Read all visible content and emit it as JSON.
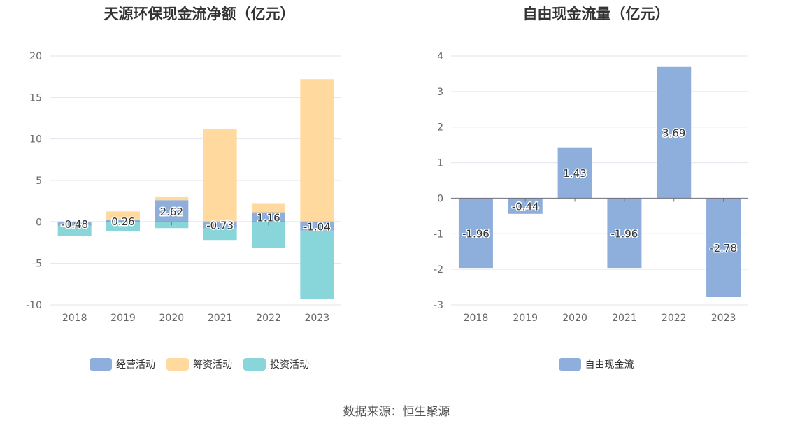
{
  "source": "数据来源：恒生聚源",
  "chart_data": [
    {
      "type": "bar",
      "stacked": true,
      "title": "天源环保现金流净额（亿元）",
      "categories": [
        "2018",
        "2019",
        "2020",
        "2021",
        "2022",
        "2023"
      ],
      "ylim": [
        -10,
        20
      ],
      "yticks": [
        20,
        15,
        10,
        5,
        0,
        -5,
        -10
      ],
      "grid": true,
      "legend_position": "bottom",
      "series": [
        {
          "name": "经营活动",
          "color": "#8eaedb",
          "values": [
            -0.48,
            0.26,
            2.62,
            -0.73,
            1.16,
            -1.04
          ],
          "labeled": true
        },
        {
          "name": "筹资活动",
          "color": "#ffd99e",
          "values": [
            0.0,
            1.0,
            0.45,
            11.2,
            1.1,
            17.2
          ],
          "labeled": false
        },
        {
          "name": "投资活动",
          "color": "#88d6da",
          "values": [
            -1.2,
            -1.15,
            -0.75,
            -1.45,
            -3.1,
            -8.2
          ],
          "labeled": false
        }
      ]
    },
    {
      "type": "bar",
      "title": "自由现金流量（亿元）",
      "categories": [
        "2018",
        "2019",
        "2020",
        "2021",
        "2022",
        "2023"
      ],
      "ylim": [
        -3,
        4
      ],
      "yticks": [
        4,
        3,
        2,
        1,
        0,
        -1,
        -2,
        -3
      ],
      "grid": true,
      "legend_position": "bottom",
      "series": [
        {
          "name": "自由现金流",
          "color": "#8eaedb",
          "values": [
            -1.96,
            -0.44,
            1.43,
            -1.96,
            3.69,
            -2.78
          ],
          "labeled": true
        }
      ]
    }
  ]
}
